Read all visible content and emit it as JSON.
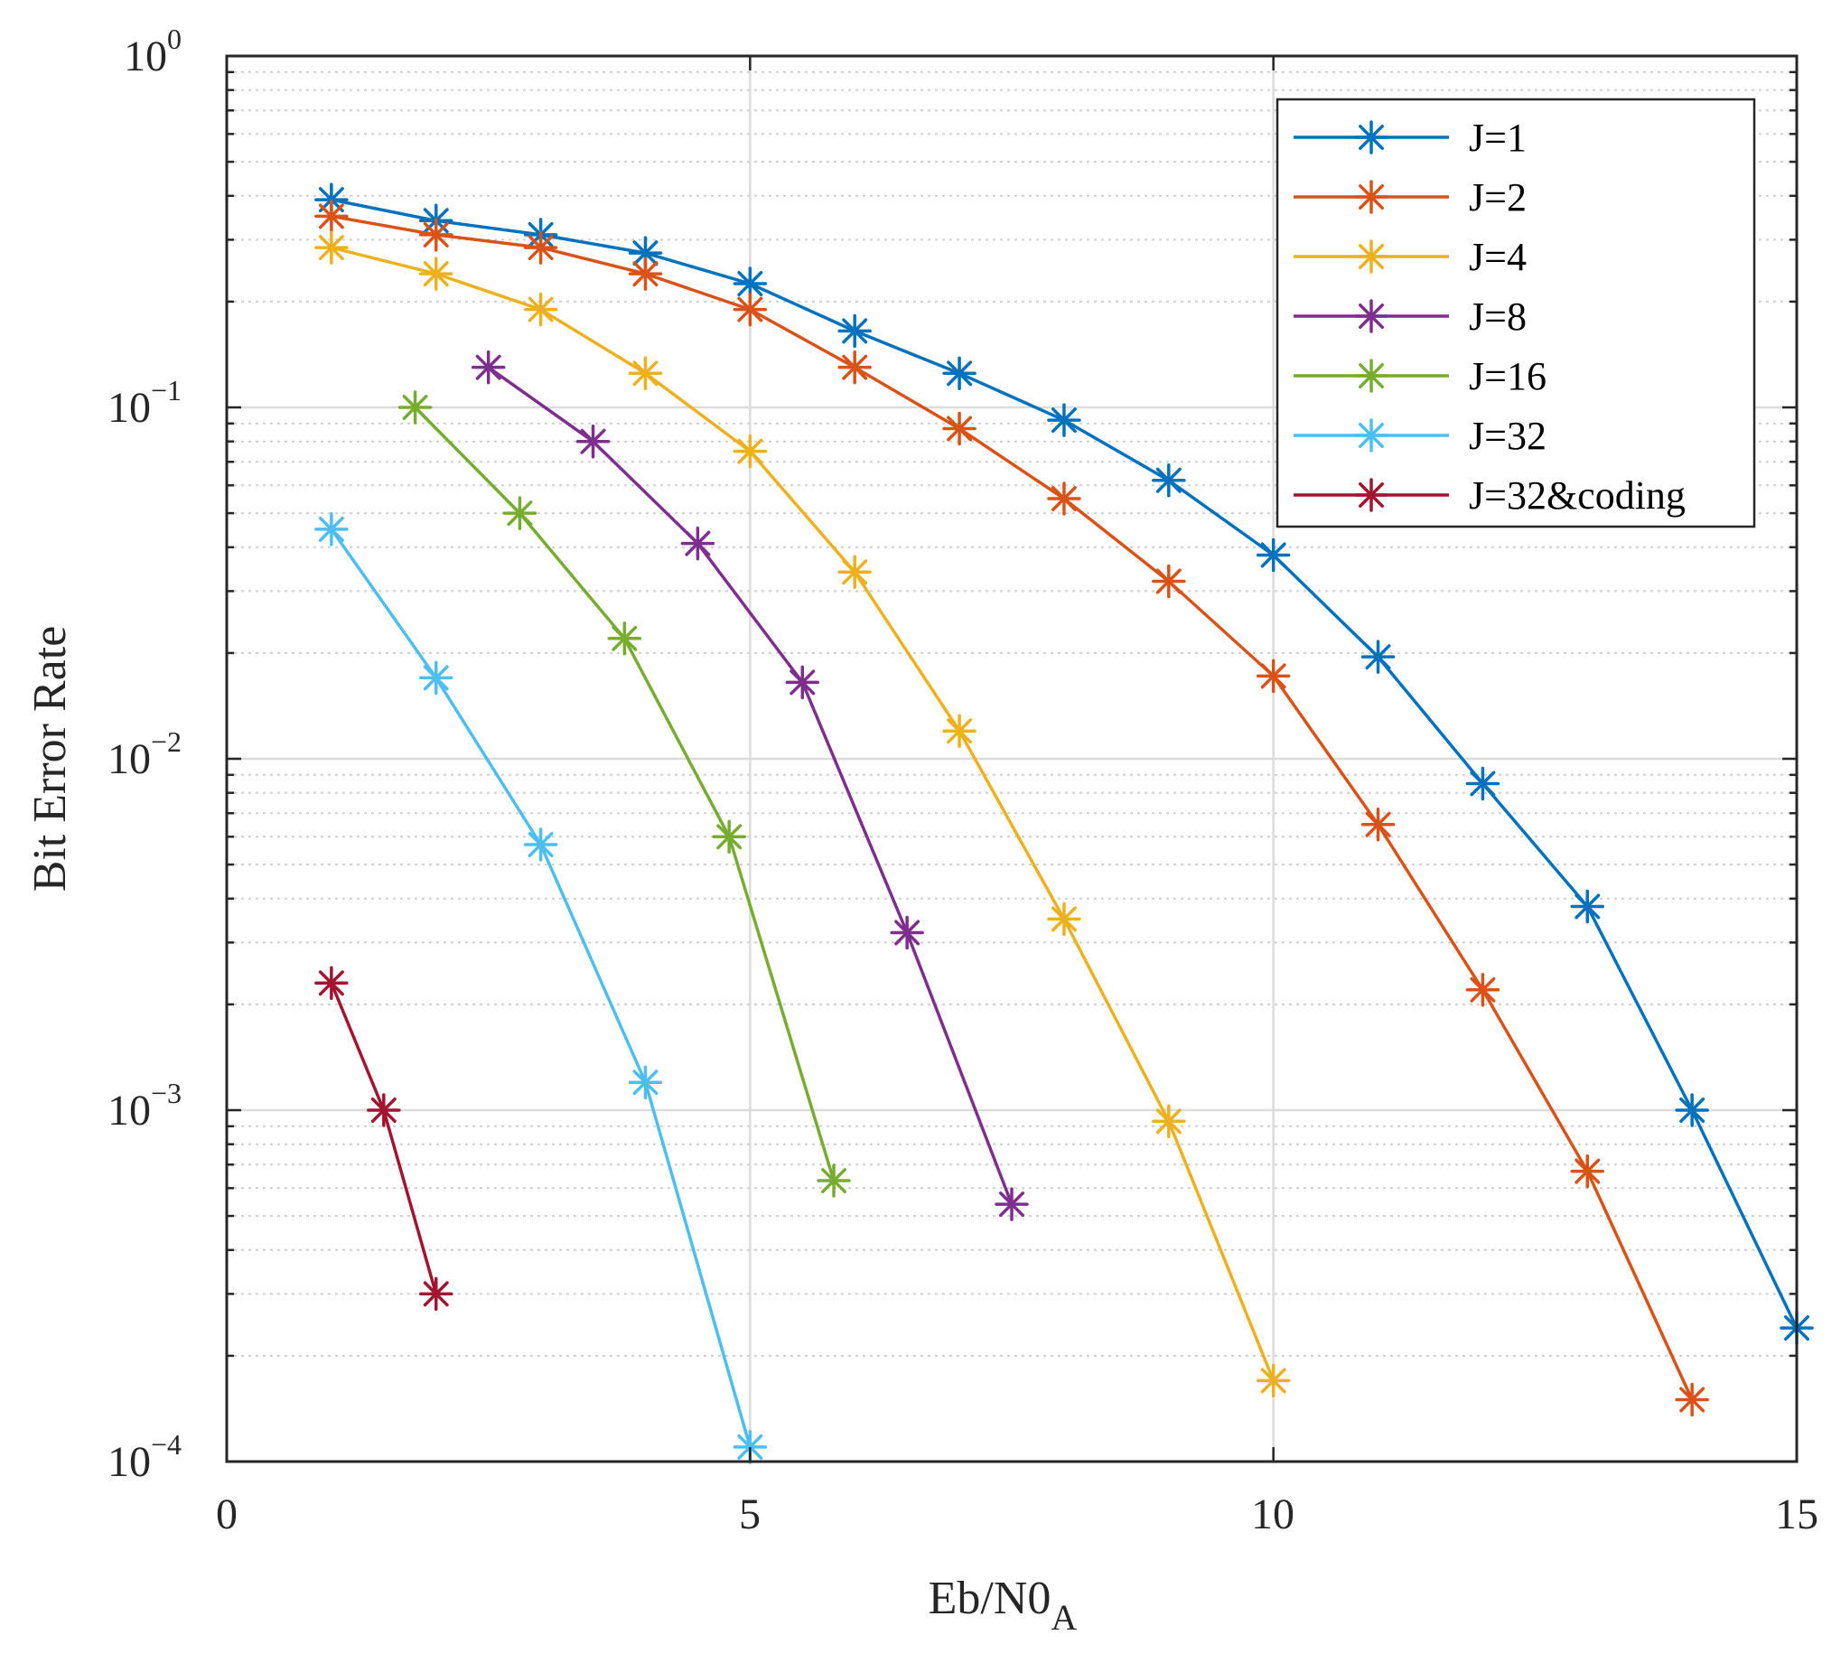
{
  "chart_data": {
    "type": "line",
    "title": "",
    "xlabel": "Eb/N0",
    "xlabel_subscript": "A",
    "ylabel": "Bit Error Rate",
    "xscale": "linear",
    "yscale": "log",
    "xlim": [
      0,
      15
    ],
    "ylim": [
      0.0001,
      1
    ],
    "xticks": [
      0,
      5,
      10,
      15
    ],
    "xtick_labels": [
      "0",
      "5",
      "10",
      "15"
    ],
    "ytick_base": "10",
    "yticks": [
      1,
      0.1,
      0.01,
      0.001,
      0.0001
    ],
    "ytick_exponents": [
      "0",
      "−1",
      "−2",
      "−3",
      "−4"
    ],
    "grid": true,
    "marker": "asterisk",
    "legend_position": "top-right",
    "series": [
      {
        "name": "J=1",
        "color": "#0072BD",
        "x": [
          1,
          2,
          3,
          4,
          5,
          6,
          7,
          8,
          9,
          10,
          11,
          12,
          13,
          14,
          15
        ],
        "y": [
          0.39,
          0.34,
          0.31,
          0.275,
          0.225,
          0.165,
          0.125,
          0.092,
          0.062,
          0.038,
          0.0195,
          0.0085,
          0.0038,
          0.001,
          0.00024
        ]
      },
      {
        "name": "J=2",
        "color": "#D95319",
        "x": [
          1,
          2,
          3,
          4,
          5,
          6,
          7,
          8,
          9,
          10,
          11,
          12,
          13,
          14
        ],
        "y": [
          0.35,
          0.31,
          0.285,
          0.24,
          0.19,
          0.13,
          0.087,
          0.055,
          0.032,
          0.0172,
          0.0065,
          0.0022,
          0.00067,
          0.00015
        ]
      },
      {
        "name": "J=4",
        "color": "#EDB120",
        "x": [
          1,
          2,
          3,
          4,
          5,
          6,
          7,
          8,
          9,
          10
        ],
        "y": [
          0.285,
          0.24,
          0.19,
          0.125,
          0.075,
          0.034,
          0.012,
          0.0035,
          0.00093,
          0.00017
        ]
      },
      {
        "name": "J=8",
        "color": "#7E2F8E",
        "x": [
          2.5,
          3.5,
          4.5,
          5.5,
          6.5,
          7.5
        ],
        "y": [
          0.13,
          0.08,
          0.041,
          0.0165,
          0.0032,
          0.00054
        ]
      },
      {
        "name": "J=16",
        "color": "#77AC30",
        "x": [
          1.8,
          2.8,
          3.8,
          4.8,
          5.8
        ],
        "y": [
          0.1,
          0.05,
          0.022,
          0.006,
          0.00063
        ]
      },
      {
        "name": "J=32",
        "color": "#4DBEEE",
        "x": [
          1,
          2,
          3,
          4,
          5
        ],
        "y": [
          0.045,
          0.017,
          0.0057,
          0.0012,
          0.00011
        ]
      },
      {
        "name": "J=32&coding",
        "color": "#A2142F",
        "x": [
          1,
          1.5,
          2
        ],
        "y": [
          0.0023,
          0.001,
          0.0003
        ]
      }
    ]
  }
}
